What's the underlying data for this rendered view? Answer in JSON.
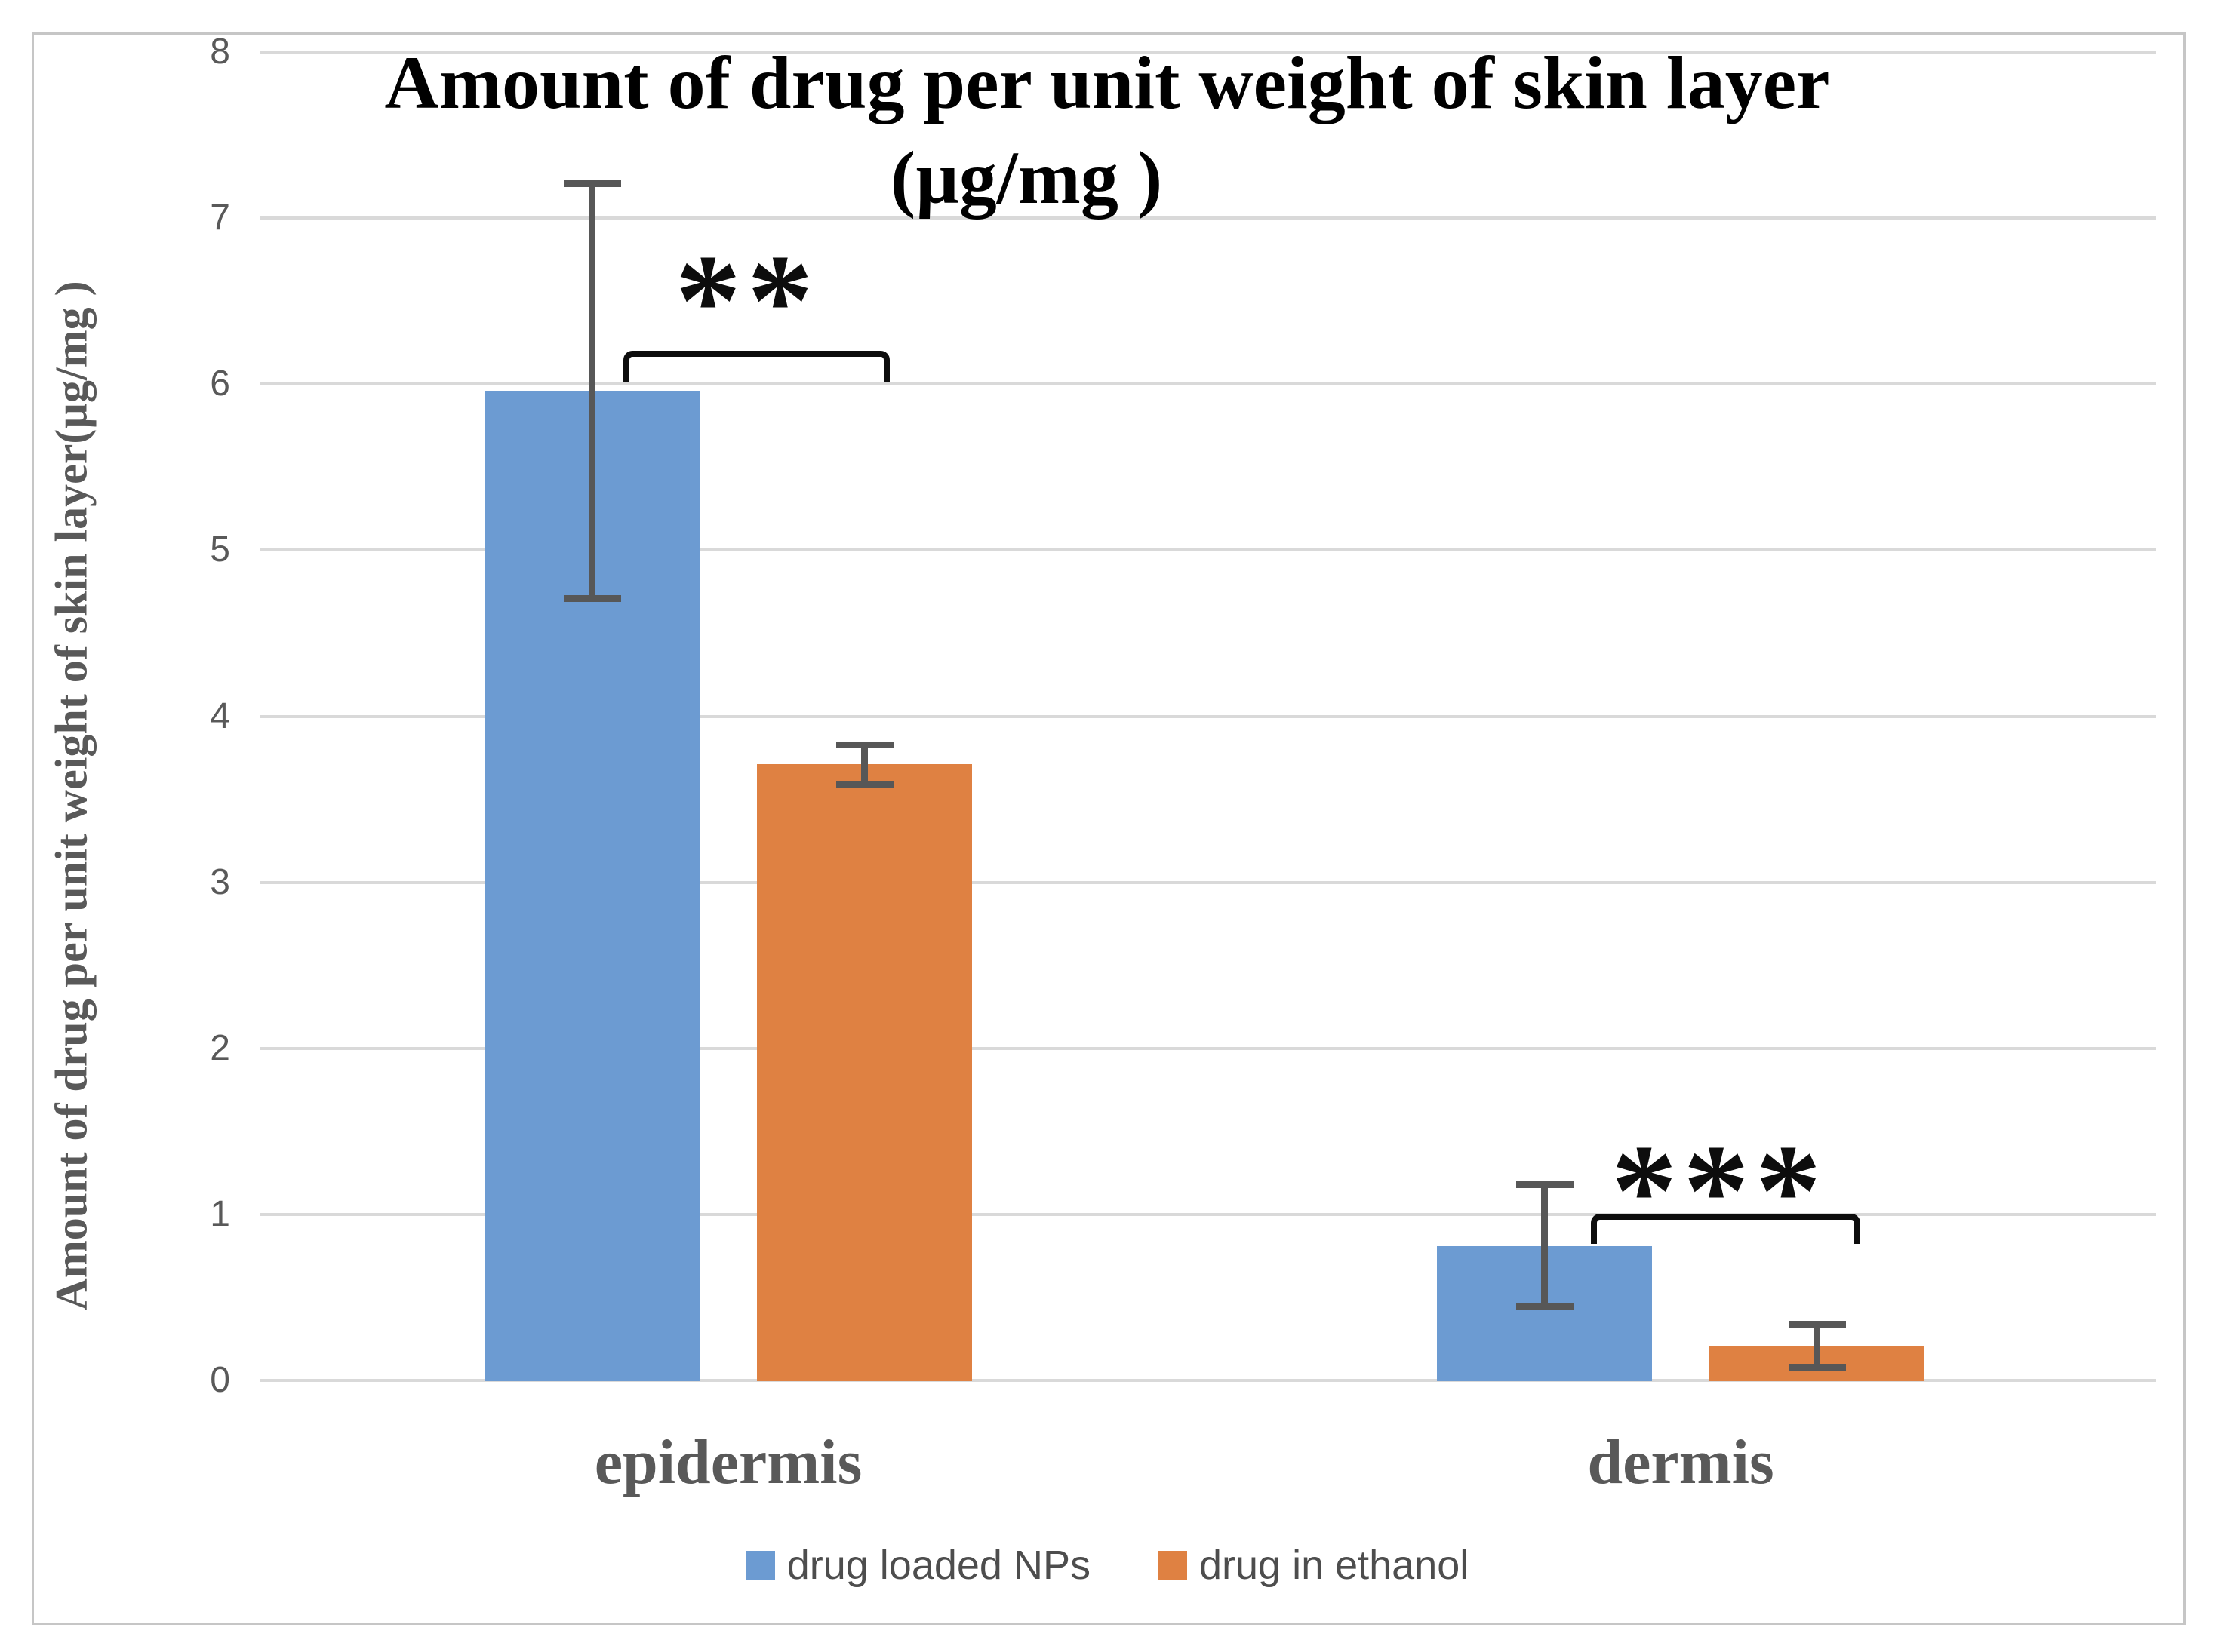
{
  "title": {
    "line1": "Amount of drug per unit weight of skin layer",
    "line2": "(µg/mg )"
  },
  "y_axis": {
    "label": "Amount of drug per unit weight of skin layer(µg/mg )",
    "tick_labels": [
      "0",
      "1",
      "2",
      "3",
      "4",
      "5",
      "6",
      "7",
      "8"
    ]
  },
  "x_axis": {
    "category_labels": [
      "epidermis",
      "dermis"
    ]
  },
  "legend": {
    "items": [
      {
        "label": "drug loaded NPs",
        "color": "#6c9bd2"
      },
      {
        "label": "drug in ethanol",
        "color": "#df8142"
      }
    ]
  },
  "annotations": [
    {
      "label": "**",
      "category": "epidermis"
    },
    {
      "label": "***",
      "category": "dermis"
    }
  ],
  "colors": {
    "series_blue": "#6c9bd2",
    "series_orange": "#df8142",
    "gridline": "#d9d9d9",
    "axis_text": "#595959",
    "error_bar": "#575757",
    "bracket": "#0d0d0d",
    "frame_border": "#c6c6c6",
    "title_text": "#000000"
  },
  "chart_data": {
    "type": "bar",
    "categories": [
      "epidermis",
      "dermis"
    ],
    "series": [
      {
        "name": "drug loaded NPs",
        "color": "#6c9bd2",
        "values": [
          5.96,
          0.81
        ],
        "error_up": [
          1.25,
          0.37
        ],
        "error_down": [
          1.25,
          0.36
        ]
      },
      {
        "name": "drug in ethanol",
        "color": "#df8142",
        "values": [
          3.71,
          0.21
        ],
        "error_up": [
          0.12,
          0.13
        ],
        "error_down": [
          0.12,
          0.13
        ]
      }
    ],
    "title": "Amount of drug per unit weight of skin layer (µg/mg )",
    "xlabel": "",
    "ylabel": "Amount of drug per unit weight of skin layer(µg/mg )",
    "ylim": [
      0,
      8
    ],
    "y_ticks": [
      0,
      1,
      2,
      3,
      4,
      5,
      6,
      7,
      8
    ],
    "grid": true,
    "legend_position": "bottom",
    "significance": [
      {
        "category": "epidermis",
        "label": "**"
      },
      {
        "category": "dermis",
        "label": "***"
      }
    ]
  }
}
